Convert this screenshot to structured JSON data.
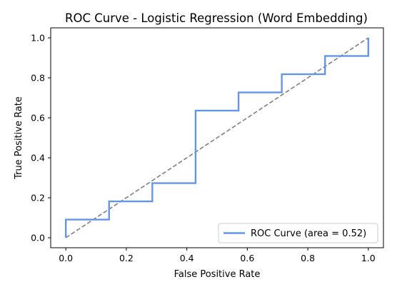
{
  "chart_data": {
    "type": "line",
    "title": "ROC Curve - Logistic Regression (Word Embedding)",
    "xlabel": "False Positive Rate",
    "ylabel": "True Positive Rate",
    "xlim": [
      -0.05,
      1.05
    ],
    "ylim": [
      -0.05,
      1.05
    ],
    "xticks": [
      0.0,
      0.2,
      0.4,
      0.6,
      0.8,
      1.0
    ],
    "yticks": [
      0.0,
      0.2,
      0.4,
      0.6,
      0.8,
      1.0
    ],
    "xtick_labels": [
      "0.0",
      "0.2",
      "0.4",
      "0.6",
      "0.8",
      "1.0"
    ],
    "ytick_labels": [
      "0.0",
      "0.2",
      "0.4",
      "0.6",
      "0.8",
      "1.0"
    ],
    "grid": false,
    "legend_position": "lower-right",
    "series": [
      {
        "name": "ROC Curve (area = 0.52)",
        "color": "#6495ED",
        "style": "solid",
        "x": [
          0.0,
          0.0,
          0.143,
          0.143,
          0.286,
          0.286,
          0.429,
          0.429,
          0.571,
          0.571,
          0.714,
          0.714,
          0.857,
          0.857,
          1.0,
          1.0
        ],
        "y": [
          0.0,
          0.091,
          0.091,
          0.182,
          0.182,
          0.273,
          0.273,
          0.636,
          0.636,
          0.727,
          0.727,
          0.818,
          0.818,
          0.909,
          0.909,
          1.0
        ]
      },
      {
        "color": "#808080",
        "style": "dashed",
        "x": [
          0.0,
          1.0
        ],
        "y": [
          0.0,
          1.0
        ]
      }
    ]
  }
}
